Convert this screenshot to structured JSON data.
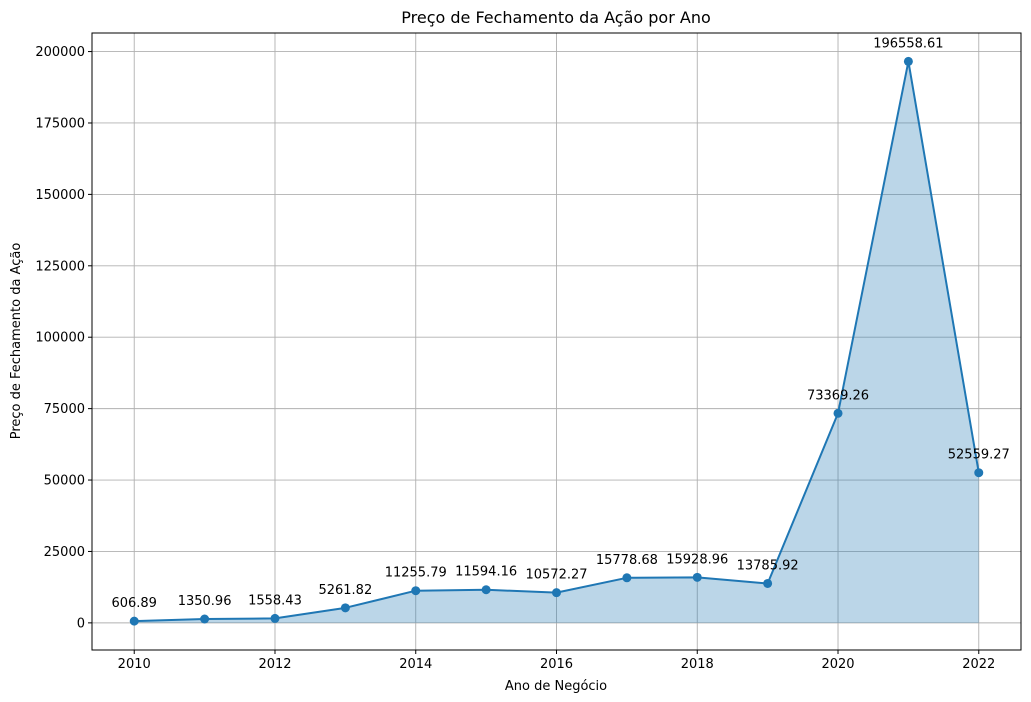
{
  "chart_data": {
    "type": "area",
    "title": "Preço de Fechamento da Ação por Ano",
    "xlabel": "Ano de Negócio",
    "ylabel": "Preço de Fechamento da Ação",
    "xlim": [
      2009.4,
      2022.6
    ],
    "ylim": [
      -9500,
      206500
    ],
    "xticks": [
      2010,
      2012,
      2014,
      2016,
      2018,
      2020,
      2022
    ],
    "yticks": [
      0,
      25000,
      50000,
      75000,
      100000,
      125000,
      150000,
      175000,
      200000
    ],
    "grid": true,
    "x": [
      2010,
      2011,
      2012,
      2013,
      2014,
      2015,
      2016,
      2017,
      2018,
      2019,
      2020,
      2021,
      2022
    ],
    "values": [
      606.89,
      1350.96,
      1558.43,
      5261.82,
      11255.79,
      11594.16,
      10572.27,
      15778.68,
      15928.96,
      13785.92,
      73369.26,
      196558.61,
      52559.27
    ],
    "data_labels": [
      "606.89",
      "1350.96",
      "1558.43",
      "5261.82",
      "11255.79",
      "11594.16",
      "10572.27",
      "15778.68",
      "15928.96",
      "13785.92",
      "73369.26",
      "196558.61",
      "52559.27"
    ],
    "colors": {
      "line": "#1f77b4",
      "fill": "#1f77b4",
      "fill_opacity": 0.3
    }
  }
}
